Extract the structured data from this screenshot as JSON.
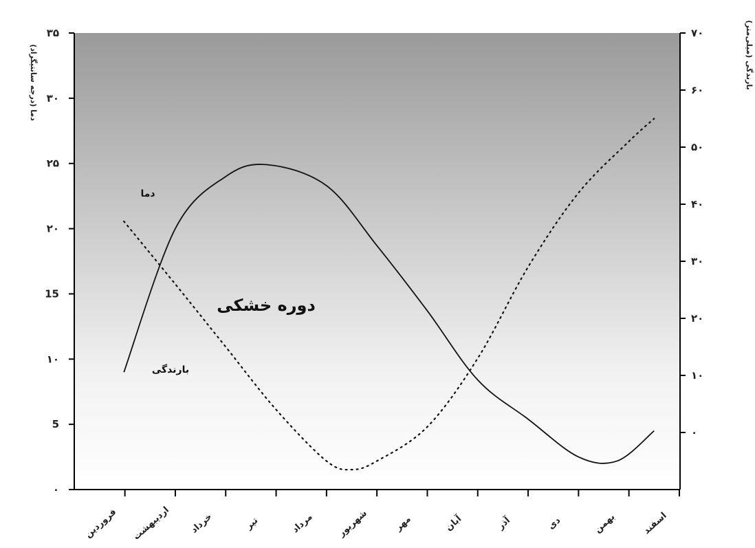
{
  "chart_data": {
    "type": "line",
    "title": "",
    "y_left_label": "دما (درجه سانتیگراد)",
    "y_right_label": "بارندگی (میلی‌متر)",
    "categories": [
      "فروردین",
      "اردیبهشت",
      "خرداد",
      "تیر",
      "مرداد",
      "شهریور",
      "مهر",
      "آبان",
      "آذر",
      "دی",
      "بهمن",
      "اسفند"
    ],
    "y_left_ticks": [
      "۰",
      "5",
      "۱۰",
      "15",
      "۲۰",
      "۲۵",
      "۳۰",
      "۳۵"
    ],
    "y_left_range": [
      0,
      35
    ],
    "y_right_ticks": [
      "۰",
      "۱۰",
      "۲۰",
      "۳۰",
      "۴۰",
      "۵۰",
      "۶۰",
      "۷۰"
    ],
    "y_right_range": [
      -10,
      70
    ],
    "series": [
      {
        "name": "دما",
        "axis": "left",
        "style": "solid",
        "x": [
          0.48,
          1.5,
          2.5,
          3.33,
          4.5,
          5.5,
          6.5,
          7.5,
          8.5,
          9.5,
          10.27,
          11.0
        ],
        "values": [
          9.0,
          20.0,
          24.0,
          24.9,
          23.3,
          18.7,
          13.7,
          8.4,
          5.4,
          2.5,
          2.2,
          4.5
        ]
      },
      {
        "name": "بارندگی",
        "axis": "right",
        "style": "dotted",
        "x": [
          0.48,
          1.5,
          2.5,
          3.5,
          4.5,
          5.0,
          5.5,
          6.5,
          7.5,
          8.5,
          9.5,
          10.5,
          11.0
        ],
        "values": [
          37,
          26,
          15,
          4,
          -5,
          -6.5,
          -5,
          1,
          13,
          29,
          42,
          51,
          55
        ]
      }
    ],
    "annotations": [
      "دما",
      "بارندگی",
      "دوره خشکی"
    ],
    "background": "gradient-gray-to-white"
  }
}
